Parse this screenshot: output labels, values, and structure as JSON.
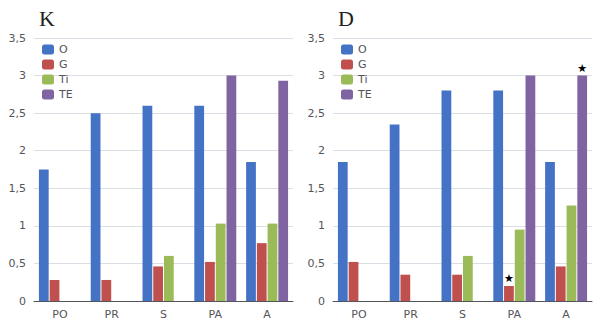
{
  "chart_data": [
    {
      "type": "bar",
      "title": "K",
      "categories": [
        "PO",
        "PR",
        "S",
        "PA",
        "A"
      ],
      "series": [
        {
          "name": "O",
          "color": "#4472C4",
          "values": [
            1.75,
            2.5,
            2.6,
            2.6,
            1.85
          ]
        },
        {
          "name": "G",
          "color": "#C0504D",
          "values": [
            0.28,
            0.28,
            0.46,
            0.52,
            0.77
          ]
        },
        {
          "name": "Ti",
          "color": "#9BBB59",
          "values": [
            0.0,
            0.0,
            0.6,
            1.03,
            1.03
          ]
        },
        {
          "name": "TE",
          "color": "#8064A2",
          "values": [
            0.0,
            0.0,
            0.0,
            3.0,
            2.93
          ]
        }
      ],
      "ylim": [
        0,
        3.5
      ],
      "yticks": [
        0,
        {
          "value": 0.5,
          "label": "0,5"
        },
        1,
        {
          "value": 1.5,
          "label": "1,5"
        },
        2,
        {
          "value": 2.5,
          "label": "2,5"
        },
        3,
        {
          "value": 3.5,
          "label": "3,5"
        }
      ],
      "grid": true,
      "legend": "upper left"
    },
    {
      "type": "bar",
      "title": "D",
      "categories": [
        "PO",
        "PR",
        "S",
        "PA",
        "A"
      ],
      "series": [
        {
          "name": "O",
          "color": "#4472C4",
          "values": [
            1.85,
            2.35,
            2.8,
            2.8,
            1.85
          ]
        },
        {
          "name": "G",
          "color": "#C0504D",
          "values": [
            0.52,
            0.35,
            0.35,
            0.2,
            0.46
          ]
        },
        {
          "name": "Ti",
          "color": "#9BBB59",
          "values": [
            0.0,
            0.0,
            0.6,
            0.95,
            1.27
          ]
        },
        {
          "name": "TE",
          "color": "#8064A2",
          "values": [
            0.0,
            0.0,
            0.0,
            3.0,
            3.0
          ]
        }
      ],
      "annotations": [
        {
          "category": "PA",
          "series": "G",
          "text": "★"
        },
        {
          "category": "A",
          "series": "TE",
          "text": "★"
        }
      ],
      "ylim": [
        0,
        3.5
      ],
      "yticks": [
        0,
        {
          "value": 0.5,
          "label": "0,5"
        },
        1,
        {
          "value": 1.5,
          "label": "1,5"
        },
        2,
        {
          "value": 2.5,
          "label": "2,5"
        },
        3,
        {
          "value": 3.5,
          "label": "3,5"
        }
      ],
      "grid": true,
      "legend": "upper left"
    }
  ]
}
